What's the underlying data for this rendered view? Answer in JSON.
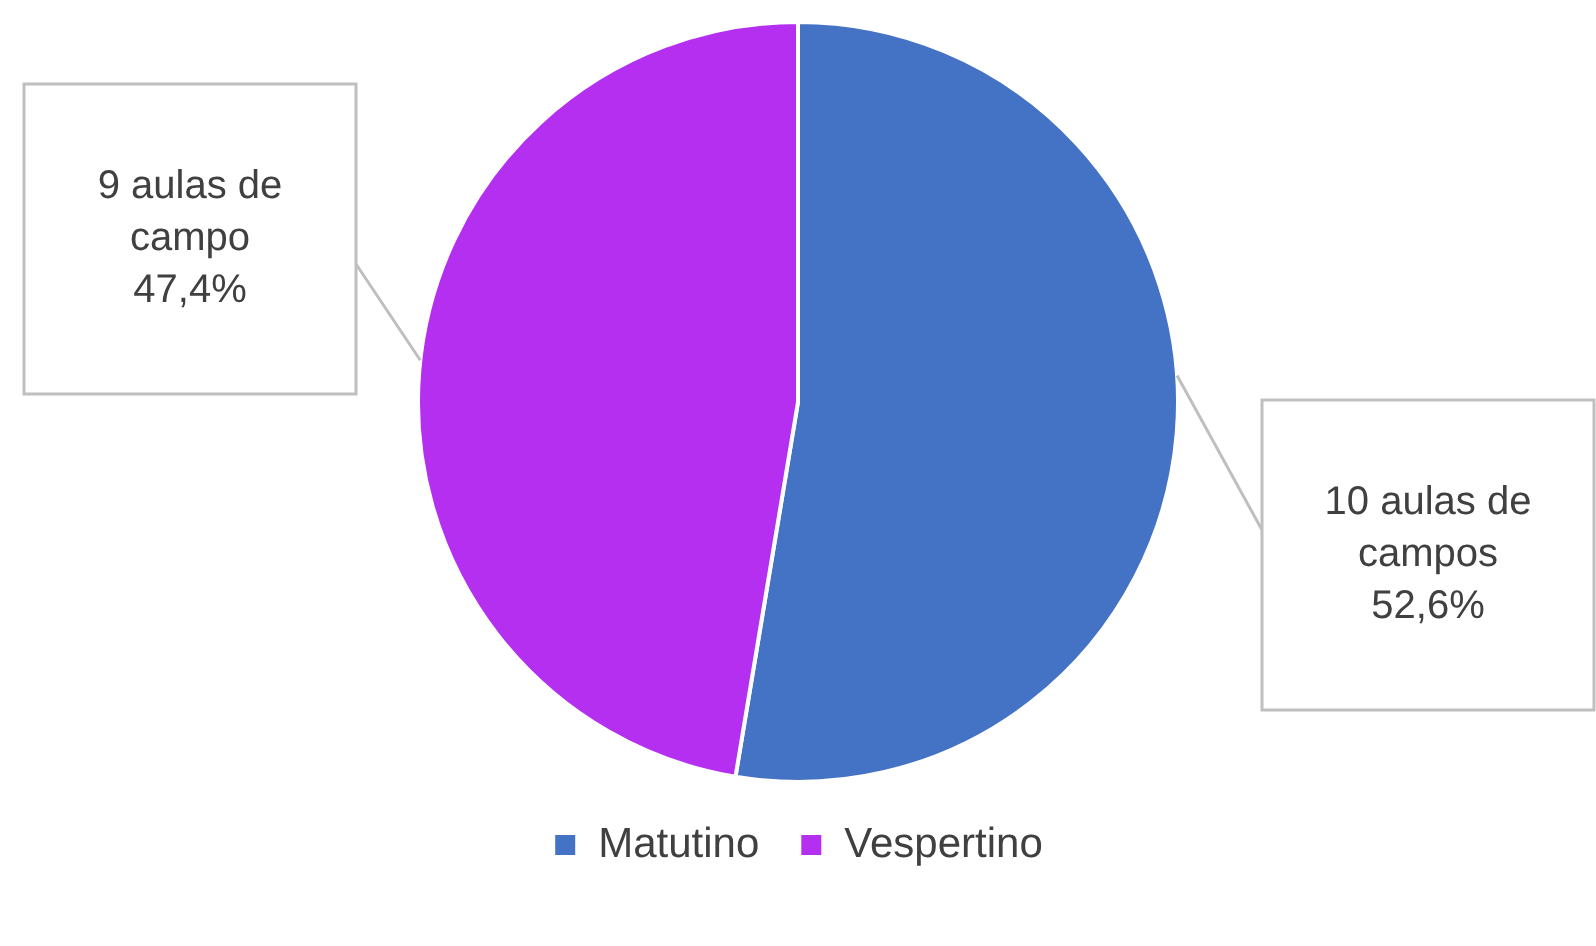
{
  "chart_data": {
    "type": "pie",
    "categories": [
      "Matutino",
      "Vespertino"
    ],
    "values": [
      10,
      9
    ],
    "colors": [
      "#4472c4",
      "#b42ff0"
    ],
    "value_labels": [
      "10 aulas de\ncampos\n52,6%",
      "9 aulas de\ncampo\n47,4%"
    ],
    "legend": "bottom"
  }
}
